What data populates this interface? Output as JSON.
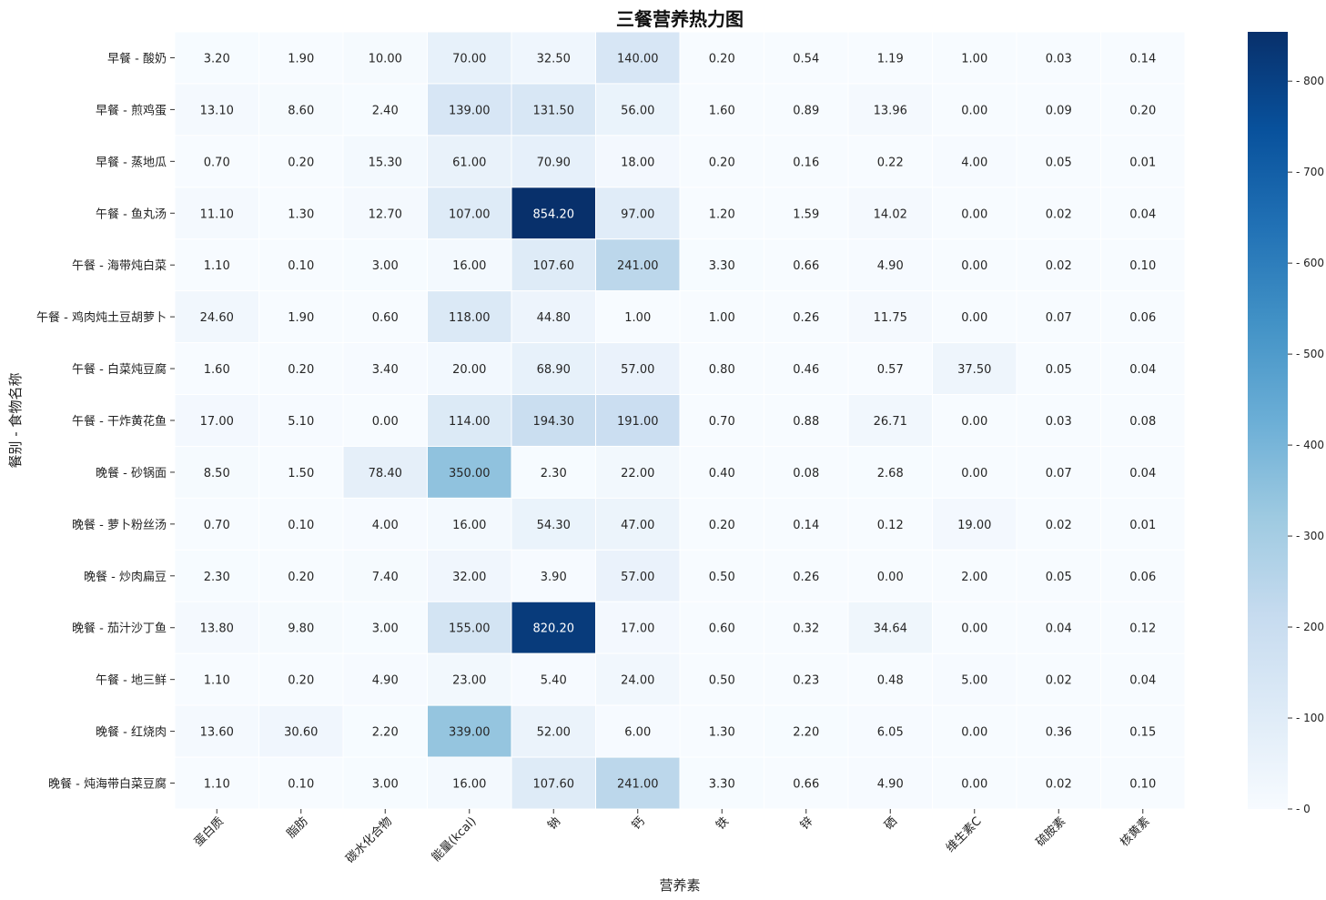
{
  "chart_data": {
    "type": "heatmap",
    "title": "三餐营养热力图",
    "xlabel": "营养素",
    "ylabel": "餐别 - 食物名称",
    "x_categories": [
      "蛋白质",
      "脂肪",
      "碳水化合物",
      "能量(kcal)",
      "钠",
      "钙",
      "铁",
      "锌",
      "硒",
      "维生素C",
      "硫胺素",
      "核黄素"
    ],
    "y_categories": [
      "早餐 - 酸奶",
      "早餐 - 煎鸡蛋",
      "早餐 - 蒸地瓜",
      "午餐 - 鱼丸汤",
      "午餐 - 海带炖白菜",
      "午餐 - 鸡肉炖土豆胡萝卜",
      "午餐 - 白菜炖豆腐",
      "午餐 - 干炸黄花鱼",
      "晚餐 - 砂锅面",
      "晚餐 - 萝卜粉丝汤",
      "晚餐 - 炒肉扁豆",
      "晚餐 - 茄汁沙丁鱼",
      "午餐 - 地三鲜",
      "晚餐 - 红烧肉",
      "晚餐 - 炖海带白菜豆腐"
    ],
    "values": [
      [
        3.2,
        1.9,
        10.0,
        70.0,
        32.5,
        140.0,
        0.2,
        0.54,
        1.19,
        1.0,
        0.03,
        0.14
      ],
      [
        13.1,
        8.6,
        2.4,
        139.0,
        131.5,
        56.0,
        1.6,
        0.89,
        13.96,
        0.0,
        0.09,
        0.2
      ],
      [
        0.7,
        0.2,
        15.3,
        61.0,
        70.9,
        18.0,
        0.2,
        0.16,
        0.22,
        4.0,
        0.05,
        0.01
      ],
      [
        11.1,
        1.3,
        12.7,
        107.0,
        854.2,
        97.0,
        1.2,
        1.59,
        14.02,
        0.0,
        0.02,
        0.04
      ],
      [
        1.1,
        0.1,
        3.0,
        16.0,
        107.6,
        241.0,
        3.3,
        0.66,
        4.9,
        0.0,
        0.02,
        0.1
      ],
      [
        24.6,
        1.9,
        0.6,
        118.0,
        44.8,
        1.0,
        1.0,
        0.26,
        11.75,
        0.0,
        0.07,
        0.06
      ],
      [
        1.6,
        0.2,
        3.4,
        20.0,
        68.9,
        57.0,
        0.8,
        0.46,
        0.57,
        37.5,
        0.05,
        0.04
      ],
      [
        17.0,
        5.1,
        0.0,
        114.0,
        194.3,
        191.0,
        0.7,
        0.88,
        26.71,
        0.0,
        0.03,
        0.08
      ],
      [
        8.5,
        1.5,
        78.4,
        350.0,
        2.3,
        22.0,
        0.4,
        0.08,
        2.68,
        0.0,
        0.07,
        0.04
      ],
      [
        0.7,
        0.1,
        4.0,
        16.0,
        54.3,
        47.0,
        0.2,
        0.14,
        0.12,
        19.0,
        0.02,
        0.01
      ],
      [
        2.3,
        0.2,
        7.4,
        32.0,
        3.9,
        57.0,
        0.5,
        0.26,
        0.0,
        2.0,
        0.05,
        0.06
      ],
      [
        13.8,
        9.8,
        3.0,
        155.0,
        820.2,
        17.0,
        0.6,
        0.32,
        34.64,
        0.0,
        0.04,
        0.12
      ],
      [
        1.1,
        0.2,
        4.9,
        23.0,
        5.4,
        24.0,
        0.5,
        0.23,
        0.48,
        5.0,
        0.02,
        0.04
      ],
      [
        13.6,
        30.6,
        2.2,
        339.0,
        52.0,
        6.0,
        1.3,
        2.2,
        6.05,
        0.0,
        0.36,
        0.15
      ],
      [
        1.1,
        0.1,
        3.0,
        16.0,
        107.6,
        241.0,
        3.3,
        0.66,
        4.9,
        0.0,
        0.02,
        0.1
      ]
    ],
    "value_format_decimals": 2,
    "colormap": "Blues",
    "colorbar": {
      "range": [
        0,
        854.2
      ],
      "ticks": [
        0,
        100,
        200,
        300,
        400,
        500,
        600,
        700,
        800
      ]
    },
    "colors": {
      "low": "#f7fbff",
      "high": "#08306b",
      "gridline": "#ffffff"
    }
  }
}
